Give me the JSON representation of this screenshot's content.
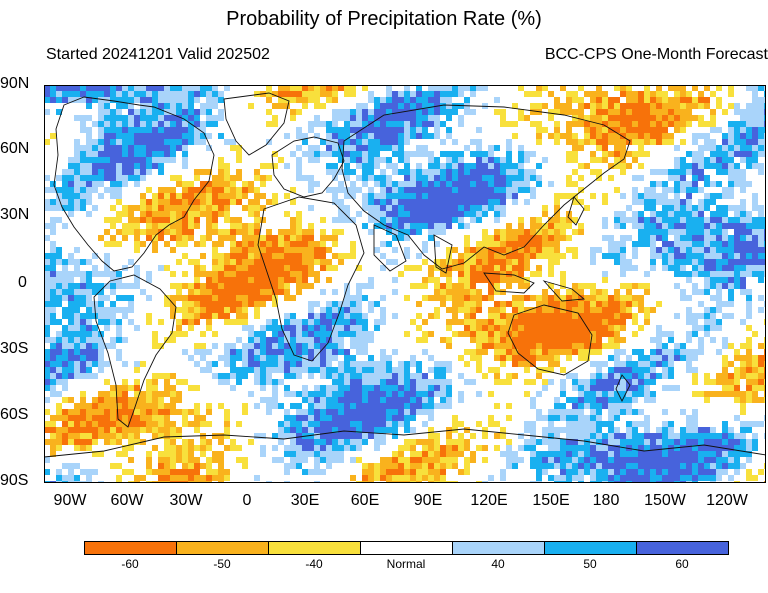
{
  "title": "Probability of Precipitation Rate (%)",
  "subtitle_left": "Started 20241201  Valid 202502",
  "subtitle_right": "BCC-CPS One-Month Forecast",
  "lat_labels": [
    "90N",
    "60N",
    "30N",
    "0",
    "30S",
    "60S",
    "90S"
  ],
  "lon_labels": [
    "90W",
    "60W",
    "30W",
    "0",
    "30E",
    "60E",
    "90E",
    "120E",
    "150E",
    "180",
    "150W",
    "120W"
  ],
  "colorbar": {
    "labels": [
      "-60",
      "-50",
      "-40",
      "Normal",
      "40",
      "50",
      "60"
    ],
    "colors": [
      "#f7720a",
      "#f9b21d",
      "#f8e03c",
      "#ffffff",
      "#a9d4fa",
      "#19b0f0",
      "#4763dc"
    ]
  }
}
